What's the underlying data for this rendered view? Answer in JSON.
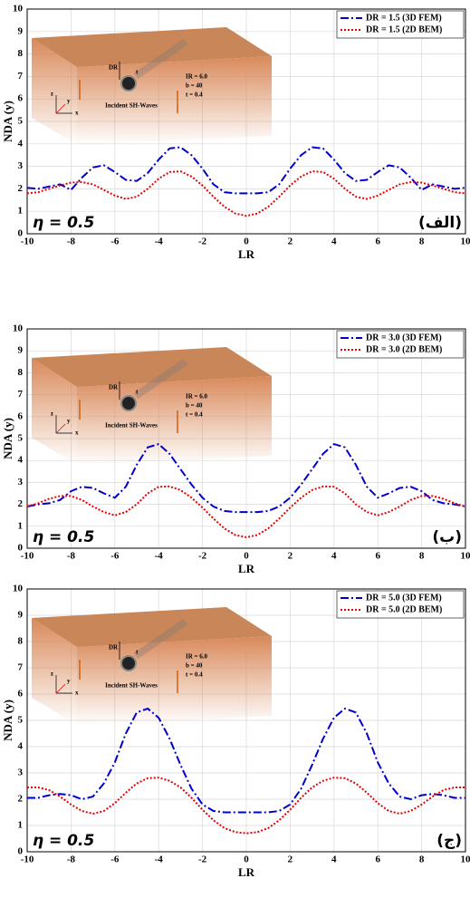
{
  "chart_data": [
    {
      "type": "line",
      "x_label": "LR",
      "y_label": "NDA (y)",
      "x": [
        -10,
        -9.5,
        -9,
        -8.5,
        -8,
        -7.5,
        -7,
        -6.5,
        -6,
        -5.5,
        -5,
        -4.5,
        -4,
        -3.5,
        -3,
        -2.5,
        -2,
        -1.5,
        -1,
        -0.5,
        0,
        0.5,
        1,
        1.5,
        2,
        2.5,
        3,
        3.5,
        4,
        4.5,
        5,
        5.5,
        6,
        6.5,
        7,
        7.5,
        8,
        8.5,
        9,
        9.5,
        10
      ],
      "xlim": [
        -10,
        10
      ],
      "ylim": [
        0,
        10
      ],
      "xticks": [
        -10,
        -8,
        -6,
        -4,
        -2,
        0,
        2,
        4,
        6,
        8,
        10
      ],
      "yticks": [
        0,
        1,
        2,
        3,
        4,
        5,
        6,
        7,
        8,
        9,
        10
      ],
      "grid": true,
      "legend": "upper right",
      "annotations": [
        "η = 0.5",
        "(الف)"
      ],
      "inset_labels": [
        "DR",
        "IR = 6.0",
        "b = 40",
        "t = 0.4",
        "Incident SH-Waves",
        "x",
        "y",
        "z",
        "t"
      ],
      "series": [
        {
          "name": "DR = 1.5 (3D FEM)",
          "color": "#0000cc",
          "values": [
            2.05,
            2.0,
            2.1,
            2.2,
            1.95,
            2.5,
            2.95,
            3.05,
            2.75,
            2.4,
            2.35,
            2.7,
            3.3,
            3.8,
            3.85,
            3.5,
            2.9,
            2.2,
            1.85,
            1.8,
            1.8,
            1.8,
            1.85,
            2.2,
            2.9,
            3.5,
            3.85,
            3.8,
            3.3,
            2.7,
            2.35,
            2.4,
            2.75,
            3.05,
            2.95,
            2.5,
            1.95,
            2.2,
            2.1,
            2.0,
            2.05
          ]
        },
        {
          "name": "DR = 1.5 (2D BEM)",
          "color": "#e60000",
          "values": [
            1.8,
            1.85,
            2.0,
            2.15,
            2.28,
            2.3,
            2.2,
            1.95,
            1.7,
            1.55,
            1.65,
            2.0,
            2.45,
            2.75,
            2.78,
            2.55,
            2.15,
            1.65,
            1.2,
            0.9,
            0.8,
            0.9,
            1.2,
            1.65,
            2.15,
            2.55,
            2.78,
            2.75,
            2.45,
            2.0,
            1.65,
            1.55,
            1.7,
            1.95,
            2.2,
            2.3,
            2.28,
            2.15,
            2.0,
            1.85,
            1.8
          ]
        }
      ]
    },
    {
      "type": "line",
      "x_label": "LR",
      "y_label": "NDA (y)",
      "x": [
        -10,
        -9.5,
        -9,
        -8.5,
        -8,
        -7.5,
        -7,
        -6.5,
        -6,
        -5.5,
        -5,
        -4.5,
        -4,
        -3.5,
        -3,
        -2.5,
        -2,
        -1.5,
        -1,
        -0.5,
        0,
        0.5,
        1,
        1.5,
        2,
        2.5,
        3,
        3.5,
        4,
        4.5,
        5,
        5.5,
        6,
        6.5,
        7,
        7.5,
        8,
        8.5,
        9,
        9.5,
        10
      ],
      "xlim": [
        -10,
        10
      ],
      "ylim": [
        0,
        10
      ],
      "xticks": [
        -10,
        -8,
        -6,
        -4,
        -2,
        0,
        2,
        4,
        6,
        8,
        10
      ],
      "yticks": [
        0,
        1,
        2,
        3,
        4,
        5,
        6,
        7,
        8,
        9,
        10
      ],
      "grid": true,
      "legend": "upper right",
      "annotations": [
        "η = 0.5",
        "(ب)"
      ],
      "inset_labels": [
        "DR",
        "IR = 6.0",
        "b = 40",
        "t = 0.4",
        "Incident SH-Waves",
        "x",
        "y",
        "z",
        "t"
      ],
      "series": [
        {
          "name": "DR = 3.0 (3D FEM)",
          "color": "#0000cc",
          "values": [
            1.9,
            2.0,
            2.05,
            2.2,
            2.6,
            2.8,
            2.75,
            2.5,
            2.3,
            2.8,
            3.8,
            4.6,
            4.75,
            4.3,
            3.6,
            2.9,
            2.3,
            1.9,
            1.7,
            1.65,
            1.65,
            1.65,
            1.7,
            1.9,
            2.3,
            2.9,
            3.6,
            4.3,
            4.75,
            4.6,
            3.8,
            2.8,
            2.3,
            2.5,
            2.75,
            2.8,
            2.6,
            2.2,
            2.05,
            2.0,
            1.9
          ]
        },
        {
          "name": "DR = 3.0 (2D BEM)",
          "color": "#e60000",
          "values": [
            1.9,
            2.05,
            2.25,
            2.38,
            2.38,
            2.2,
            1.9,
            1.65,
            1.5,
            1.65,
            2.0,
            2.5,
            2.8,
            2.82,
            2.65,
            2.3,
            1.85,
            1.35,
            0.9,
            0.6,
            0.5,
            0.6,
            0.9,
            1.35,
            1.85,
            2.3,
            2.65,
            2.82,
            2.8,
            2.5,
            2.0,
            1.65,
            1.5,
            1.65,
            1.9,
            2.2,
            2.38,
            2.38,
            2.25,
            2.05,
            1.9
          ]
        }
      ]
    },
    {
      "type": "line",
      "x_label": "LR",
      "y_label": "NDA (y)",
      "x": [
        -10,
        -9.5,
        -9,
        -8.5,
        -8,
        -7.5,
        -7,
        -6.5,
        -6,
        -5.5,
        -5,
        -4.5,
        -4,
        -3.5,
        -3,
        -2.5,
        -2,
        -1.5,
        -1,
        -0.5,
        0,
        0.5,
        1,
        1.5,
        2,
        2.5,
        3,
        3.5,
        4,
        4.5,
        5,
        5.5,
        6,
        6.5,
        7,
        7.5,
        8,
        8.5,
        9,
        9.5,
        10
      ],
      "xlim": [
        -10,
        10
      ],
      "ylim": [
        0,
        10
      ],
      "xticks": [
        -10,
        -8,
        -6,
        -4,
        -2,
        0,
        2,
        4,
        6,
        8,
        10
      ],
      "yticks": [
        0,
        1,
        2,
        3,
        4,
        5,
        6,
        7,
        8,
        9,
        10
      ],
      "grid": true,
      "legend": "upper right",
      "annotations": [
        "η = 0.5",
        "(ج)"
      ],
      "inset_labels": [
        "DR",
        "IR = 6.0",
        "b = 40",
        "t = 0.4",
        "Incident SH-Waves",
        "x",
        "y",
        "z",
        "t"
      ],
      "series": [
        {
          "name": "DR = 5.0 (3D FEM)",
          "color": "#0000cc",
          "values": [
            2.05,
            2.05,
            2.15,
            2.2,
            2.15,
            2.0,
            2.1,
            2.6,
            3.4,
            4.5,
            5.3,
            5.45,
            5.1,
            4.3,
            3.3,
            2.4,
            1.8,
            1.55,
            1.5,
            1.5,
            1.5,
            1.5,
            1.5,
            1.55,
            1.8,
            2.4,
            3.3,
            4.3,
            5.1,
            5.45,
            5.3,
            4.5,
            3.4,
            2.6,
            2.1,
            2.0,
            2.15,
            2.2,
            2.15,
            2.05,
            2.05
          ]
        },
        {
          "name": "DR = 5.0 (2D BEM)",
          "color": "#e60000",
          "values": [
            2.45,
            2.45,
            2.35,
            2.1,
            1.8,
            1.55,
            1.45,
            1.55,
            1.85,
            2.25,
            2.6,
            2.8,
            2.82,
            2.7,
            2.45,
            2.05,
            1.6,
            1.2,
            0.9,
            0.75,
            0.7,
            0.75,
            0.9,
            1.2,
            1.6,
            2.05,
            2.45,
            2.7,
            2.82,
            2.8,
            2.6,
            2.25,
            1.85,
            1.55,
            1.45,
            1.55,
            1.8,
            2.1,
            2.35,
            2.45,
            2.45
          ]
        }
      ]
    }
  ]
}
